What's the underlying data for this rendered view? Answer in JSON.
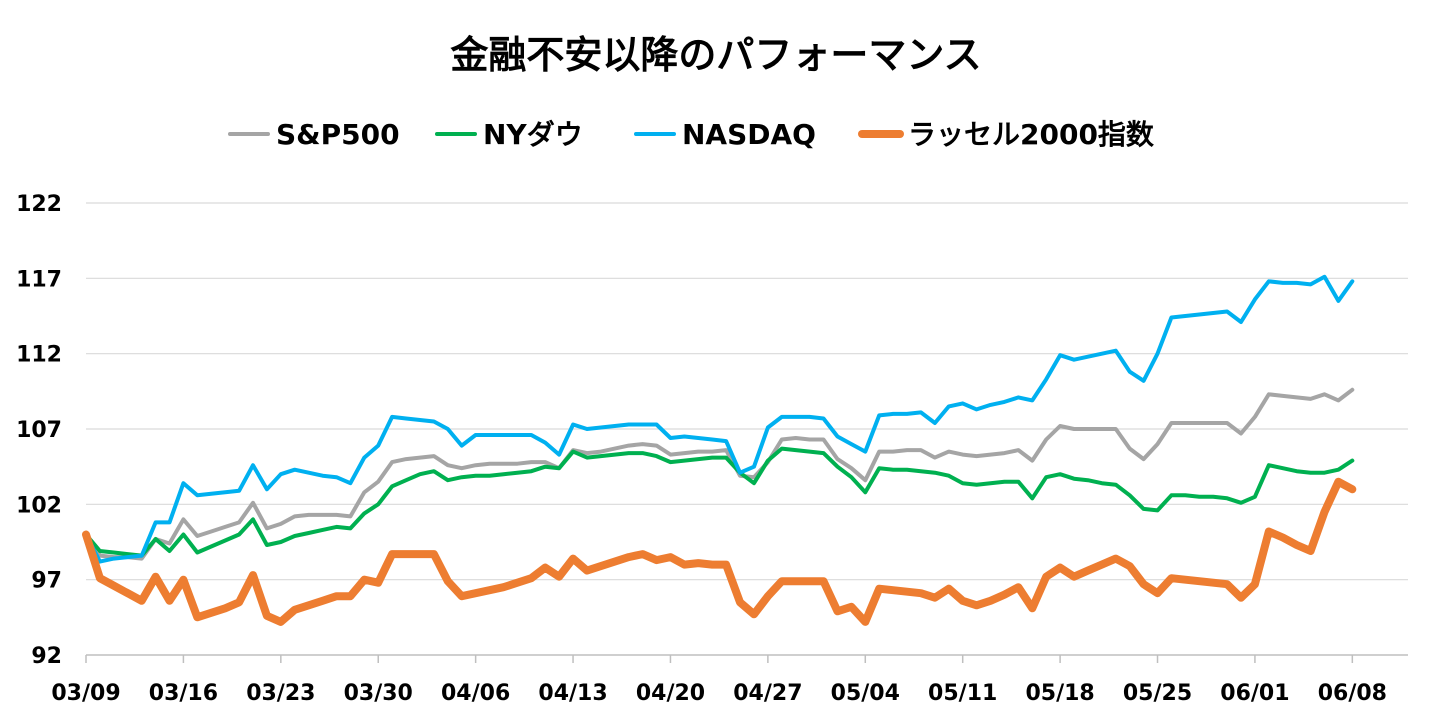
{
  "chart_data": {
    "type": "line",
    "title": "金融不安以降のパフォーマンス",
    "xlabel": "",
    "ylabel": "",
    "ylim": [
      92,
      122
    ],
    "yticks": [
      92,
      97,
      102,
      107,
      112,
      117,
      122
    ],
    "xlim": [
      0,
      95
    ],
    "xticks": [
      {
        "pos": 0,
        "label": "03/09"
      },
      {
        "pos": 7,
        "label": "03/16"
      },
      {
        "pos": 14,
        "label": "03/23"
      },
      {
        "pos": 21,
        "label": "03/30"
      },
      {
        "pos": 28,
        "label": "04/06"
      },
      {
        "pos": 35,
        "label": "04/13"
      },
      {
        "pos": 42,
        "label": "04/20"
      },
      {
        "pos": 49,
        "label": "04/27"
      },
      {
        "pos": 56,
        "label": "05/04"
      },
      {
        "pos": 63,
        "label": "05/11"
      },
      {
        "pos": 70,
        "label": "05/18"
      },
      {
        "pos": 77,
        "label": "05/25"
      },
      {
        "pos": 84,
        "label": "06/01"
      },
      {
        "pos": 91,
        "label": "06/08"
      }
    ],
    "grid": true,
    "legend_position": "top",
    "series": [
      {
        "name": "S&P500",
        "color": "#a5a5a5",
        "x": [
          0,
          1,
          2,
          3,
          4,
          5,
          6,
          7,
          8,
          9,
          10,
          11,
          12,
          13,
          14,
          15,
          16,
          17,
          18,
          19,
          20,
          21,
          22,
          23,
          24,
          25,
          26,
          27,
          28,
          29,
          30,
          31,
          32,
          33,
          34,
          35,
          36,
          37,
          38,
          39,
          40,
          41,
          42,
          43,
          44,
          45,
          46,
          47,
          48,
          49,
          50,
          51,
          52,
          53,
          54,
          55,
          56,
          57,
          58,
          59,
          60,
          61,
          62,
          63,
          64,
          65,
          66,
          67,
          68,
          69,
          70,
          71,
          72,
          73,
          74,
          75,
          76,
          77,
          78,
          79,
          80,
          81,
          82,
          83,
          84,
          85,
          86,
          87,
          88,
          89,
          90,
          91
        ],
        "y": [
          100,
          98.6,
          98.5,
          98.5,
          98.4,
          99.7,
          99.4,
          101.0,
          99.9,
          100.2,
          100.5,
          100.8,
          102.1,
          100.4,
          100.7,
          101.2,
          101.3,
          101.3,
          101.3,
          101.2,
          102.8,
          103.5,
          104.8,
          105.0,
          105.1,
          105.2,
          104.6,
          104.4,
          104.6,
          104.7,
          104.7,
          104.7,
          104.8,
          104.8,
          104.4,
          105.6,
          105.4,
          105.5,
          105.7,
          105.9,
          106.0,
          105.9,
          105.3,
          105.4,
          105.5,
          105.5,
          105.6,
          103.9,
          103.8,
          104.8,
          106.3,
          106.4,
          106.3,
          106.3,
          105.0,
          104.4,
          103.6,
          105.5,
          105.5,
          105.6,
          105.6,
          105.1,
          105.5,
          105.3,
          105.2,
          105.3,
          105.4,
          105.6,
          104.9,
          106.3,
          107.2,
          107.0,
          107.0,
          107.0,
          107.0,
          105.7,
          105.0,
          106.0,
          107.4,
          107.4,
          107.4,
          107.4,
          107.4,
          106.7,
          107.8,
          109.3,
          109.2,
          109.1,
          109.0,
          109.3,
          108.9,
          109.6
        ]
      },
      {
        "name": "NYダウ",
        "color": "#00b050",
        "x": [
          0,
          1,
          2,
          3,
          4,
          5,
          6,
          7,
          8,
          9,
          10,
          11,
          12,
          13,
          14,
          15,
          16,
          17,
          18,
          19,
          20,
          21,
          22,
          23,
          24,
          25,
          26,
          27,
          28,
          29,
          30,
          31,
          32,
          33,
          34,
          35,
          36,
          37,
          38,
          39,
          40,
          41,
          42,
          43,
          44,
          45,
          46,
          47,
          48,
          49,
          50,
          51,
          52,
          53,
          54,
          55,
          56,
          57,
          58,
          59,
          60,
          61,
          62,
          63,
          64,
          65,
          66,
          67,
          68,
          69,
          70,
          71,
          72,
          73,
          74,
          75,
          76,
          77,
          78,
          79,
          80,
          81,
          82,
          83,
          84,
          85,
          86,
          87,
          88,
          89,
          90,
          91
        ],
        "y": [
          100,
          98.9,
          98.8,
          98.7,
          98.6,
          99.7,
          98.9,
          100.0,
          98.8,
          99.2,
          99.6,
          100.0,
          101.0,
          99.3,
          99.5,
          99.9,
          100.1,
          100.3,
          100.5,
          100.4,
          101.4,
          102.0,
          103.2,
          103.6,
          104.0,
          104.2,
          103.6,
          103.8,
          103.9,
          103.9,
          104.0,
          104.1,
          104.2,
          104.5,
          104.4,
          105.5,
          105.1,
          105.2,
          105.3,
          105.4,
          105.4,
          105.2,
          104.8,
          104.9,
          105.0,
          105.1,
          105.1,
          104.1,
          103.4,
          104.9,
          105.7,
          105.6,
          105.5,
          105.4,
          104.5,
          103.8,
          102.8,
          104.4,
          104.3,
          104.3,
          104.2,
          104.1,
          103.9,
          103.4,
          103.3,
          103.4,
          103.5,
          103.5,
          102.4,
          103.8,
          104.0,
          103.7,
          103.6,
          103.4,
          103.3,
          102.6,
          101.7,
          101.6,
          102.6,
          102.6,
          102.5,
          102.5,
          102.4,
          102.1,
          102.5,
          104.6,
          104.4,
          104.2,
          104.1,
          104.1,
          104.3,
          104.9
        ]
      },
      {
        "name": "NASDAQ",
        "color": "#00b0f0",
        "x": [
          0,
          1,
          2,
          3,
          4,
          5,
          6,
          7,
          8,
          9,
          10,
          11,
          12,
          13,
          14,
          15,
          16,
          17,
          18,
          19,
          20,
          21,
          22,
          23,
          24,
          25,
          26,
          27,
          28,
          29,
          30,
          31,
          32,
          33,
          34,
          35,
          36,
          37,
          38,
          39,
          40,
          41,
          42,
          43,
          44,
          45,
          46,
          47,
          48,
          49,
          50,
          51,
          52,
          53,
          54,
          55,
          56,
          57,
          58,
          59,
          60,
          61,
          62,
          63,
          64,
          65,
          66,
          67,
          68,
          69,
          70,
          71,
          72,
          73,
          74,
          75,
          76,
          77,
          78,
          79,
          80,
          81,
          82,
          83,
          84,
          85,
          86,
          87,
          88,
          89,
          90,
          91
        ],
        "y": [
          100,
          98.2,
          98.4,
          98.5,
          98.6,
          100.8,
          100.8,
          103.4,
          102.6,
          102.7,
          102.8,
          102.9,
          104.6,
          103.0,
          104.0,
          104.3,
          104.1,
          103.9,
          103.8,
          103.4,
          105.1,
          105.9,
          107.8,
          107.7,
          107.6,
          107.5,
          107.0,
          105.9,
          106.6,
          106.6,
          106.6,
          106.6,
          106.6,
          106.1,
          105.3,
          107.3,
          107.0,
          107.1,
          107.2,
          107.3,
          107.3,
          107.3,
          106.4,
          106.5,
          106.4,
          106.3,
          106.2,
          104.1,
          104.5,
          107.1,
          107.8,
          107.8,
          107.8,
          107.7,
          106.5,
          106.0,
          105.5,
          107.9,
          108.0,
          108.0,
          108.1,
          107.4,
          108.5,
          108.7,
          108.3,
          108.6,
          108.8,
          109.1,
          108.9,
          110.3,
          111.9,
          111.6,
          111.8,
          112.0,
          112.2,
          110.8,
          110.2,
          112.0,
          114.4,
          114.5,
          114.6,
          114.7,
          114.8,
          114.1,
          115.6,
          116.8,
          116.7,
          116.7,
          116.6,
          117.1,
          115.5,
          116.8
        ]
      },
      {
        "name": "ラッセル2000指数",
        "color": "#ed7d31",
        "x": [
          0,
          1,
          2,
          3,
          4,
          5,
          6,
          7,
          8,
          9,
          10,
          11,
          12,
          13,
          14,
          15,
          16,
          17,
          18,
          19,
          20,
          21,
          22,
          23,
          24,
          25,
          26,
          27,
          28,
          29,
          30,
          31,
          32,
          33,
          34,
          35,
          36,
          37,
          38,
          39,
          40,
          41,
          42,
          43,
          44,
          45,
          46,
          47,
          48,
          49,
          50,
          51,
          52,
          53,
          54,
          55,
          56,
          57,
          58,
          59,
          60,
          61,
          62,
          63,
          64,
          65,
          66,
          67,
          68,
          69,
          70,
          71,
          72,
          73,
          74,
          75,
          76,
          77,
          78,
          79,
          80,
          81,
          82,
          83,
          84,
          85,
          86,
          87,
          88,
          89,
          90,
          91
        ],
        "y": [
          100,
          97.1,
          96.6,
          96.1,
          95.6,
          97.2,
          95.6,
          97.0,
          94.5,
          94.8,
          95.1,
          95.5,
          97.3,
          94.6,
          94.2,
          95.0,
          95.3,
          95.6,
          95.9,
          95.9,
          97.0,
          96.8,
          98.7,
          98.7,
          98.7,
          98.7,
          96.9,
          95.9,
          96.1,
          96.3,
          96.5,
          96.8,
          97.1,
          97.8,
          97.2,
          98.4,
          97.6,
          97.9,
          98.2,
          98.5,
          98.7,
          98.3,
          98.5,
          98.0,
          98.1,
          98.0,
          98.0,
          95.5,
          94.7,
          95.9,
          96.9,
          96.9,
          96.9,
          96.9,
          94.9,
          95.2,
          94.2,
          96.4,
          96.3,
          96.2,
          96.1,
          95.8,
          96.4,
          95.6,
          95.3,
          95.6,
          96.0,
          96.5,
          95.1,
          97.2,
          97.8,
          97.2,
          97.6,
          98.0,
          98.4,
          97.9,
          96.7,
          96.1,
          97.1,
          97.0,
          96.9,
          96.8,
          96.7,
          95.8,
          96.7,
          100.2,
          99.8,
          99.3,
          98.9,
          101.5,
          103.5,
          103.0
        ]
      }
    ]
  }
}
